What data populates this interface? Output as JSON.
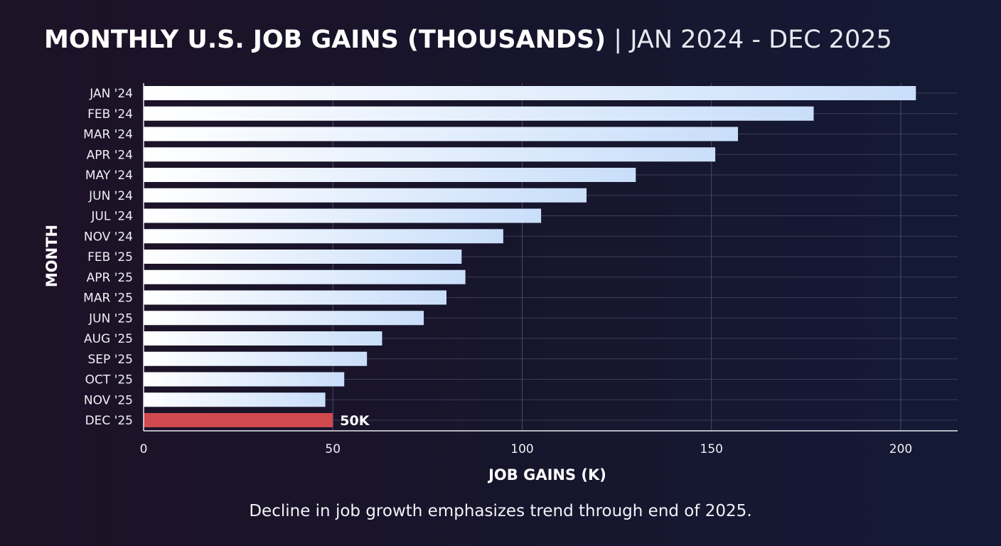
{
  "chart_data": {
    "type": "bar",
    "orientation": "horizontal",
    "title": "MONTHLY U.S. JOB GAINS (THOUSANDS)",
    "subtitle": "JAN 2024 - DEC 2025",
    "xlabel": "JOB GAINS (K)",
    "ylabel": "MONTH",
    "xlim": [
      0,
      215
    ],
    "xticks": [
      0,
      50,
      100,
      150,
      200
    ],
    "grid": true,
    "categories": [
      "JAN '24",
      "FEB '24",
      "MAR '24",
      "APR '24",
      "MAY '24",
      "JUN '24",
      "JUL '24",
      "NOV '24",
      "FEB '25",
      "APR '25",
      "MAR '25",
      "JUN '25",
      "AUG '25",
      "SEP '25",
      "OCT '25",
      "NOV '25",
      "DEC '25"
    ],
    "values": [
      204,
      177,
      157,
      151,
      130,
      117,
      105,
      95,
      84,
      85,
      80,
      74,
      63,
      59,
      53,
      48,
      50
    ],
    "highlight": {
      "category": "DEC '25",
      "label": "50K",
      "color": "#d0494f"
    },
    "bar_color_start": "#ffffff",
    "bar_color_end": "#c9defa"
  },
  "caption": "Decline in job growth emphasizes trend through end of 2025."
}
